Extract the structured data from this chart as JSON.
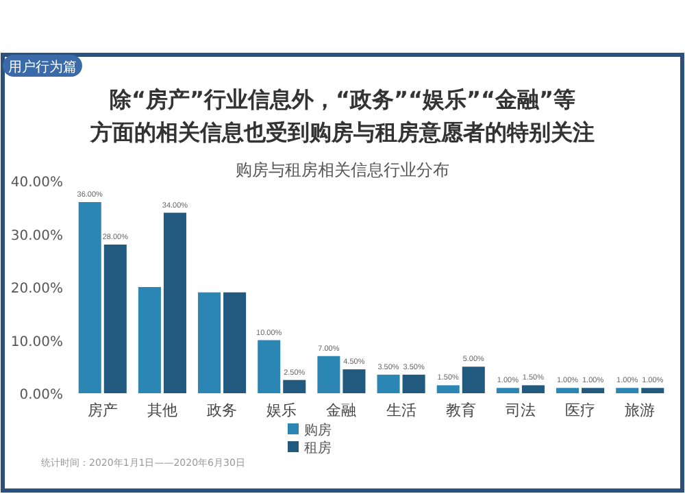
{
  "chart_data": {
    "type": "bar",
    "title": "除“房产”行业信息外，“政务”“娱乐”“金融”等方面的相关信息也受到购房与租房意愿者的特别关注",
    "subtitle": "购房与租房相关信息行业分布",
    "annotations": [
      "用户行为篇",
      "统计时间：2020年1月1日——2020年6月30日"
    ],
    "categories": [
      "房产",
      "其他",
      "政务",
      "娱乐",
      "金融",
      "生活",
      "教育",
      "司法",
      "医疗",
      "旅游"
    ],
    "series": [
      {
        "name": "购房",
        "color": "#2b86b3",
        "values": [
          36,
          20,
          19,
          10,
          7,
          3.5,
          1.5,
          1,
          1,
          1
        ],
        "value_labels": [
          "36.00%",
          null,
          null,
          "10.00%",
          "7.00%",
          "3.50%",
          "1.50%",
          "1.00%",
          "1.00%",
          "1.00%"
        ]
      },
      {
        "name": "租房",
        "color": "#215a7e",
        "values": [
          28,
          34,
          19,
          2.5,
          4.5,
          3.5,
          5,
          1.5,
          1,
          1
        ],
        "value_labels": [
          "28.00%",
          "34.00%",
          null,
          "2.50%",
          "4.50%",
          "3.50%",
          "5.00%",
          "1.50%",
          "1.00%",
          "1.00%"
        ]
      }
    ],
    "ylim": [
      0,
      40
    ],
    "yticks": [
      {
        "value": 0,
        "label": "0.00%"
      },
      {
        "value": 10,
        "label": "10.00%"
      },
      {
        "value": 20,
        "label": "20.00%"
      },
      {
        "value": 30,
        "label": "30.00%"
      },
      {
        "value": 40,
        "label": "40.00%"
      }
    ],
    "legend": "bottom"
  }
}
